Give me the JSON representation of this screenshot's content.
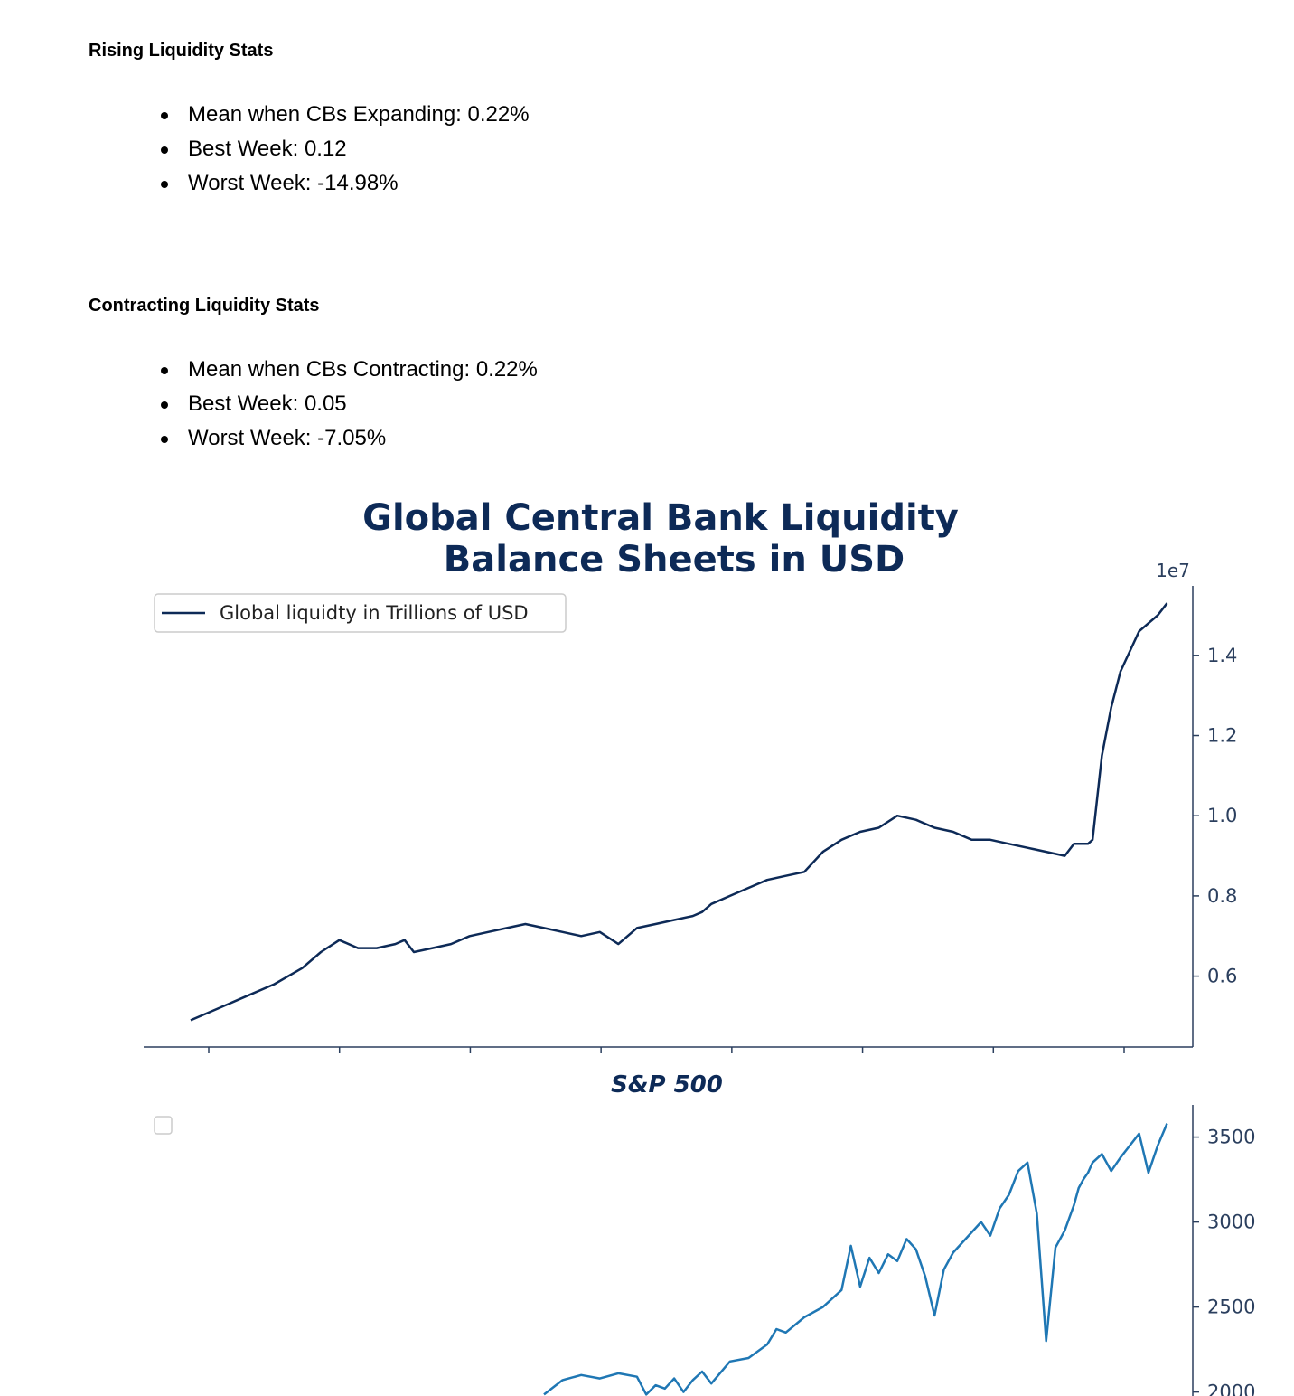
{
  "rising": {
    "heading": "Rising Liquidity Stats",
    "items": [
      "Mean when CBs Expanding: 0.22%",
      "Best Week: 0.12",
      "Worst Week: -14.98%"
    ]
  },
  "contracting": {
    "heading": "Contracting Liquidity Stats",
    "items": [
      "Mean when CBs Contracting: 0.22%",
      "Best Week: 0.05",
      "Worst Week: -7.05%"
    ]
  },
  "colors": {
    "liquidity_line": "#0d2a57",
    "sp500_line": "#1f77b4",
    "axis": "#2b3f5e"
  },
  "chart_data": [
    {
      "type": "line",
      "title": "Global Central Bank Liquidity\nBalance Sheets in USD",
      "title_lines": [
        "Global Central Bank Liquidity",
        "Balance Sheets in USD"
      ],
      "offset_label": "1e7",
      "legend": {
        "placement": "top-left",
        "entries": [
          "Global liquidty in Trillions of USD"
        ]
      },
      "y_axis": {
        "side": "right",
        "ticks": [
          0.6,
          0.8,
          1.0,
          1.2,
          1.4
        ],
        "tick_labels": [
          "0.6",
          "0.8",
          "1.0",
          "1.2",
          "1.4"
        ],
        "range": [
          0.43,
          1.58
        ]
      },
      "x_axis": {
        "tick_count": 8,
        "tick_labels_shown": false,
        "range": [
          0,
          100
        ]
      },
      "grid": false,
      "series": [
        {
          "name": "Global liquidty in Trillions of USD",
          "x": [
            0,
            3,
            6,
            9,
            12,
            14,
            16,
            18,
            20,
            22,
            23,
            24,
            26,
            28,
            30,
            32,
            34,
            36,
            38,
            40,
            42,
            44,
            46,
            48,
            50,
            52,
            54,
            55,
            56,
            58,
            60,
            62,
            64,
            66,
            68,
            70,
            72,
            74,
            76,
            78,
            80,
            82,
            84,
            86,
            88,
            90,
            92,
            94,
            95,
            96,
            96.5,
            97,
            98,
            99,
            100,
            101,
            102,
            103,
            104,
            105
          ],
          "y": [
            0.49,
            0.52,
            0.55,
            0.58,
            0.62,
            0.66,
            0.69,
            0.67,
            0.67,
            0.68,
            0.69,
            0.66,
            0.67,
            0.68,
            0.7,
            0.71,
            0.72,
            0.73,
            0.72,
            0.71,
            0.7,
            0.71,
            0.68,
            0.72,
            0.73,
            0.74,
            0.75,
            0.76,
            0.78,
            0.8,
            0.82,
            0.84,
            0.85,
            0.86,
            0.91,
            0.94,
            0.96,
            0.97,
            1.0,
            0.99,
            0.97,
            0.96,
            0.94,
            0.94,
            0.93,
            0.92,
            0.91,
            0.9,
            0.93,
            0.93,
            0.93,
            0.94,
            1.15,
            1.27,
            1.36,
            1.41,
            1.46,
            1.48,
            1.5,
            1.53
          ]
        }
      ]
    },
    {
      "type": "line",
      "title": "S&P 500",
      "legend": {
        "placement": "top-left",
        "entries": [
          ""
        ]
      },
      "y_axis": {
        "side": "right",
        "ticks": [
          2000,
          2500,
          3000,
          3500
        ],
        "tick_labels": [
          "2000",
          "2500",
          "3000",
          "3500"
        ],
        "range": [
          1950,
          3700
        ]
      },
      "x_axis": {
        "range": [
          0,
          100
        ]
      },
      "grid": false,
      "series": [
        {
          "x": [
            38,
            40,
            42,
            44,
            46,
            48,
            49,
            50,
            51,
            52,
            53,
            54,
            55,
            56,
            58,
            60,
            62,
            63,
            64,
            66,
            68,
            70,
            71,
            72,
            73,
            74,
            75,
            76,
            77,
            78,
            79,
            80,
            81,
            82,
            84,
            85,
            86,
            87,
            88,
            89,
            90,
            91,
            92,
            93,
            94,
            95,
            95.5,
            96,
            96.5,
            97,
            98,
            99,
            100,
            101,
            102,
            103,
            104,
            105
          ],
          "y": [
            1985,
            2070,
            2100,
            2080,
            2110,
            2090,
            1985,
            2040,
            2020,
            2080,
            2000,
            2070,
            2120,
            2050,
            2180,
            2200,
            2280,
            2370,
            2350,
            2440,
            2500,
            2600,
            2860,
            2620,
            2790,
            2700,
            2810,
            2770,
            2900,
            2840,
            2680,
            2450,
            2720,
            2820,
            2940,
            3000,
            2920,
            3080,
            3160,
            3300,
            3350,
            3050,
            2300,
            2850,
            2950,
            3100,
            3200,
            3250,
            3290,
            3350,
            3400,
            3300,
            3380,
            3450,
            3520,
            3290,
            3450,
            3580
          ]
        }
      ]
    }
  ]
}
